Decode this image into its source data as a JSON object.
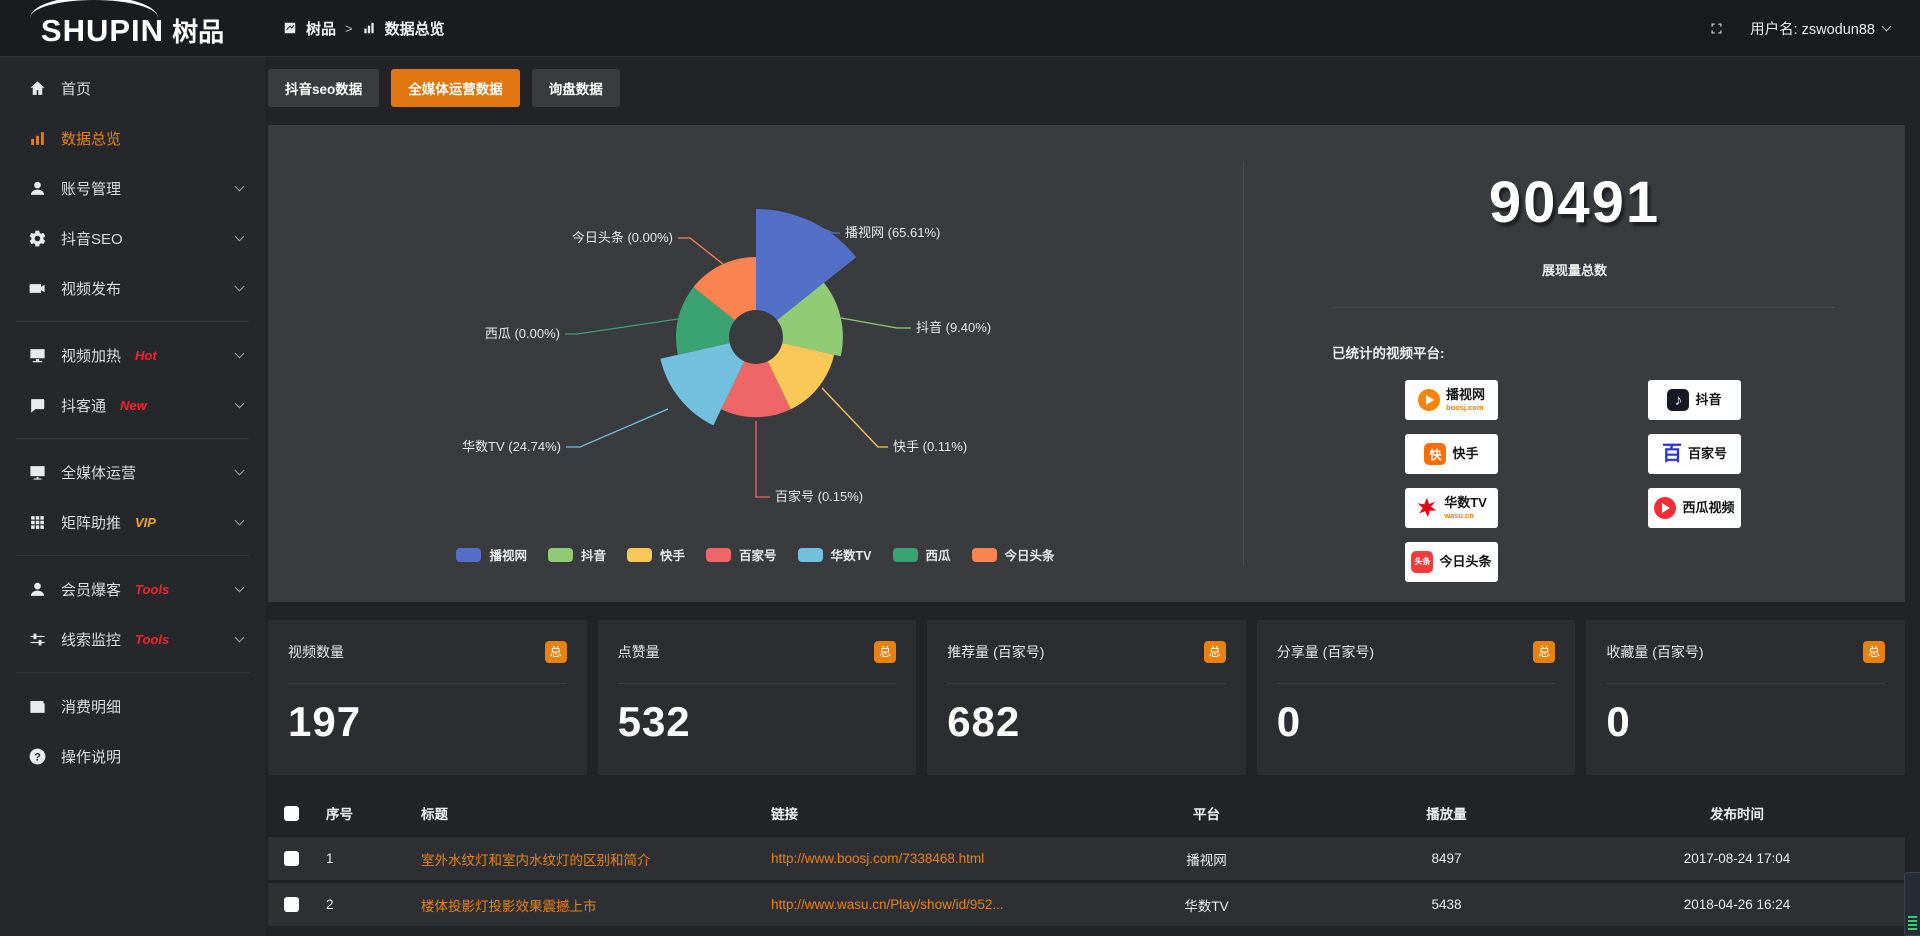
{
  "topbar": {
    "logo_text": "SHUPIN",
    "logo_suffix": "树品",
    "breadcrumb_root": "树品",
    "breadcrumb_sep": ">",
    "breadcrumb_current": "数据总览",
    "fullscreen_icon": "fullscreen-icon",
    "username": "用户名: zswodun88"
  },
  "sidebar": {
    "items": [
      {
        "label": "首页",
        "icon": "home-icon"
      },
      {
        "label": "数据总览",
        "icon": "bar-chart-icon",
        "active": true
      },
      {
        "label": "账号管理",
        "icon": "user-icon",
        "chevron": true
      },
      {
        "label": "抖音SEO",
        "icon": "gear-icon",
        "chevron": true
      },
      {
        "label": "视频发布",
        "icon": "video-publish-icon",
        "chevron": true,
        "divider_after": true
      },
      {
        "label": "视频加热",
        "icon": "video-heat-icon",
        "badge": "Hot",
        "badge_color": "#f5222d",
        "chevron": true
      },
      {
        "label": "抖客通",
        "icon": "chat-icon",
        "badge": "New",
        "badge_color": "#f5222d",
        "chevron": true,
        "divider_after": true
      },
      {
        "label": "全媒体运营",
        "icon": "monitor-icon",
        "chevron": true
      },
      {
        "label": "矩阵助推",
        "icon": "grid-icon",
        "badge": "VIP",
        "badge_color": "#f0a325",
        "chevron": true,
        "divider_after": true
      },
      {
        "label": "会员爆客",
        "icon": "member-icon",
        "badge": "Tools",
        "badge_color": "#f5222d",
        "chevron": true
      },
      {
        "label": "线索监控",
        "icon": "sliders-icon",
        "badge": "Tools",
        "badge_color": "#f5222d",
        "chevron": true,
        "divider_after": true
      },
      {
        "label": "消费明细",
        "icon": "wallet-icon"
      },
      {
        "label": "操作说明",
        "icon": "question-icon"
      }
    ]
  },
  "tabs": [
    {
      "label": "抖音seo数据"
    },
    {
      "label": "全媒体运营数据",
      "active": true
    },
    {
      "label": "询盘数据"
    }
  ],
  "chart_data": {
    "type": "pie",
    "style": "nightingale-rose",
    "unit": "%",
    "label_format": "{name} ({value}%)",
    "legend_position": "bottom",
    "series": [
      {
        "name": "播视网",
        "value": 65.61,
        "color": "#5470c6"
      },
      {
        "name": "抖音",
        "value": 9.4,
        "color": "#91cc75"
      },
      {
        "name": "快手",
        "value": 0.11,
        "color": "#fac858"
      },
      {
        "name": "百家号",
        "value": 0.15,
        "color": "#ee6666"
      },
      {
        "name": "华数TV",
        "value": 24.74,
        "color": "#73c0de"
      },
      {
        "name": "西瓜",
        "value": 0.0,
        "color": "#3ba272"
      },
      {
        "name": "今日头条",
        "value": 0.0,
        "color": "#fc8452"
      }
    ]
  },
  "overview": {
    "total_value": "90491",
    "total_label": "展现量总数",
    "platforms_title": "已统计的视频平台:",
    "platform_columns": {
      "left": [
        {
          "name": "播视网",
          "sub": "boosj.com",
          "icon": "boosj-logo"
        },
        {
          "name": "快手",
          "icon": "kuaishou-logo"
        },
        {
          "name": "华数TV",
          "sub": "wasu.cn",
          "icon": "wasu-logo"
        },
        {
          "name": "今日头条",
          "icon": "toutiao-logo"
        }
      ],
      "right": [
        {
          "name": "抖音",
          "icon": "douyin-logo"
        },
        {
          "name": "百家号",
          "icon": "baijiahao-logo"
        },
        {
          "name": "西瓜视频",
          "icon": "xigua-logo"
        }
      ]
    }
  },
  "stat_cards": [
    {
      "title": "视频数量",
      "badge": "总",
      "value": "197"
    },
    {
      "title": "点赞量",
      "badge": "总",
      "value": "532"
    },
    {
      "title": "推荐量 (百家号)",
      "badge": "总",
      "value": "682"
    },
    {
      "title": "分享量 (百家号)",
      "badge": "总",
      "value": "0"
    },
    {
      "title": "收藏量 (百家号)",
      "badge": "总",
      "value": "0"
    }
  ],
  "table": {
    "headers": [
      "序号",
      "标题",
      "链接",
      "平台",
      "播放量",
      "发布时间"
    ],
    "rows": [
      {
        "index": "1",
        "title": "室外水纹灯和室内水纹灯的区别和简介",
        "link": "http://www.boosj.com/7338468.html",
        "platform": "播视网",
        "views": "8497",
        "time": "2017-08-24 17:04"
      },
      {
        "index": "2",
        "title": "楼体投影灯投影效果震撼上市",
        "link": "http://www.wasu.cn/Play/show/id/952...",
        "platform": "华数TV",
        "views": "5438",
        "time": "2018-04-26 16:24"
      }
    ]
  },
  "colors": {
    "accent": "#e8820e",
    "tab_active": "#e0760f"
  }
}
